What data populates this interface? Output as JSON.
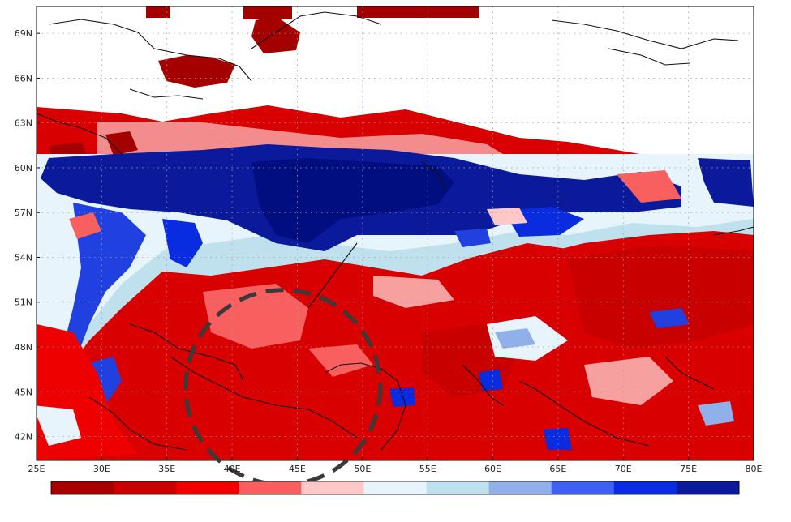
{
  "map": {
    "lat_labels": [
      "69N",
      "66N",
      "63N",
      "60N",
      "57N",
      "54N",
      "51N",
      "48N",
      "45N",
      "42N"
    ],
    "lon_labels": [
      "25E",
      "30E",
      "35E",
      "40E",
      "45E",
      "50E",
      "55E",
      "60E",
      "65E",
      "70E",
      "75E",
      "80E"
    ],
    "lat_values": [
      69,
      66,
      63,
      60,
      57,
      54,
      51,
      48,
      45,
      42
    ],
    "lon_values": [
      25,
      30,
      35,
      40,
      45,
      50,
      55,
      60,
      65,
      70,
      75,
      80
    ],
    "extent": {
      "lon_min": 25,
      "lon_max": 80,
      "lat_min": 40.4,
      "lat_max": 70.8
    },
    "grid": "dotted",
    "highlight": {
      "type": "dashed-circle",
      "center_lon": 43.9,
      "center_lat": 45.3
    }
  },
  "colorbar": {
    "colors": [
      "#a50000",
      "#c80000",
      "#ee0000",
      "#f86060",
      "#ffc8c8",
      "#e8f4fb",
      "#bfe1ee",
      "#8fb0e8",
      "#4060f0",
      "#0a2ce0",
      "#0a1a9a"
    ],
    "labels": []
  },
  "palette": {
    "dark_red": "#a50000",
    "red": "#d80000",
    "light_red": "#f86060",
    "pink": "#ffc8c8",
    "white_blue": "#e8f4fb",
    "light_blue": "#bfe1ee",
    "mid_blue": "#8fb0e8",
    "blue": "#2040e0",
    "dark_blue": "#0a1a9a"
  }
}
